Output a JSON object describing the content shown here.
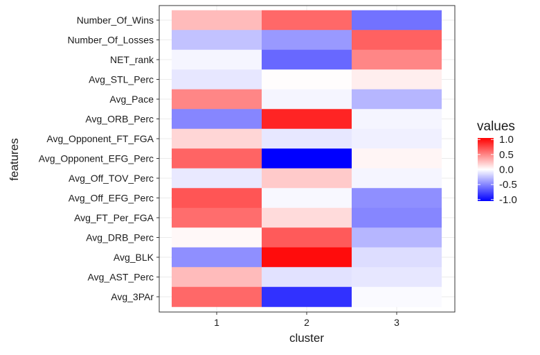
{
  "chart_data": {
    "type": "heatmap",
    "xlabel": "cluster",
    "ylabel": "features",
    "x_categories": [
      "1",
      "2",
      "3"
    ],
    "y_categories": [
      "Number_Of_Wins",
      "Number_Of_Losses",
      "NET_rank",
      "Avg_STL_Perc",
      "Avg_Pace",
      "Avg_ORB_Perc",
      "Avg_Opponent_FT_FGA",
      "Avg_Opponent_EFG_Perc",
      "Avg_Off_TOV_Perc",
      "Avg_Off_EFG_Perc",
      "Avg_FT_Per_FGA",
      "Avg_DRB_Perc",
      "Avg_BLK",
      "Avg_AST_Perc",
      "Avg_3PAr"
    ],
    "values": [
      [
        0.28,
        0.62,
        -0.58
      ],
      [
        -0.25,
        -0.42,
        0.65
      ],
      [
        -0.04,
        -0.62,
        0.5
      ],
      [
        -0.1,
        0.01,
        0.07
      ],
      [
        0.5,
        -0.04,
        -0.3
      ],
      [
        -0.5,
        0.9,
        -0.04
      ],
      [
        0.17,
        -0.1,
        -0.06
      ],
      [
        0.64,
        -1.05,
        0.04
      ],
      [
        -0.09,
        0.22,
        -0.04
      ],
      [
        0.7,
        -0.03,
        -0.46
      ],
      [
        0.6,
        0.15,
        -0.5
      ],
      [
        0.03,
        0.68,
        -0.3
      ],
      [
        -0.46,
        1.0,
        -0.14
      ],
      [
        0.28,
        -0.12,
        -0.1
      ],
      [
        0.62,
        -0.85,
        -0.02
      ]
    ],
    "legend": {
      "title": "values",
      "ticks": [
        "1.0",
        "0.5",
        "0.0",
        "-0.5",
        "-1.0"
      ],
      "range": [
        -1.05,
        1.05
      ],
      "low_color": "#0000ff",
      "mid_color": "#ffffff",
      "high_color": "#ff0000",
      "placement": "right"
    },
    "grid": true,
    "panel_border_color": "#333333",
    "grid_color": "#ebebeb"
  }
}
